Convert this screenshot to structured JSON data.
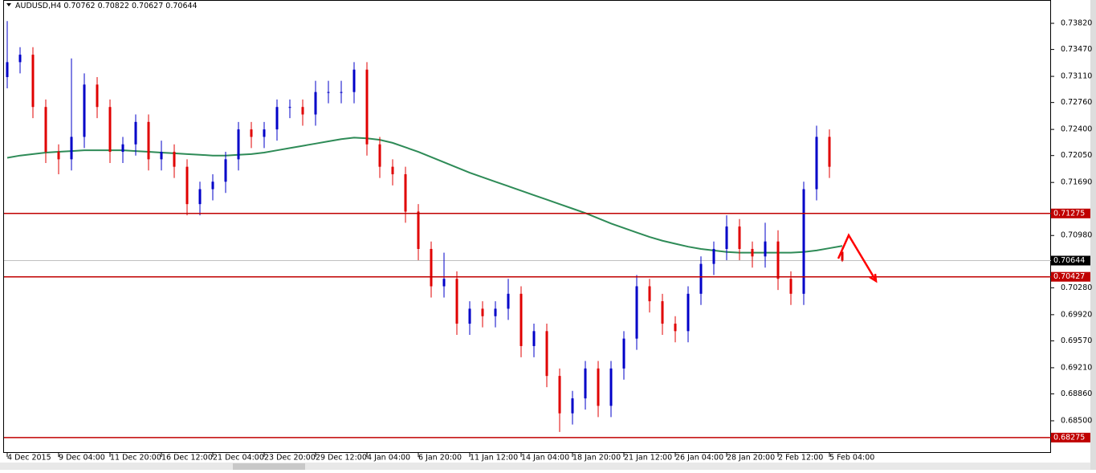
{
  "chart_data": {
    "type": "candlestick",
    "symbol": "AUDUSD,H4",
    "ylim": [
      0.68059,
      0.74132
    ],
    "yticks": [
      {
        "value": 0.7382,
        "label": "0.73820"
      },
      {
        "value": 0.7347,
        "label": "0.73470"
      },
      {
        "value": 0.7311,
        "label": "0.73110"
      },
      {
        "value": 0.7276,
        "label": "0.72760"
      },
      {
        "value": 0.724,
        "label": "0.72400"
      },
      {
        "value": 0.7205,
        "label": "0.72050"
      },
      {
        "value": 0.7169,
        "label": "0.71690"
      },
      {
        "value": 0.7098,
        "label": "0.70980"
      },
      {
        "value": 0.7028,
        "label": "0.70280"
      },
      {
        "value": 0.6992,
        "label": "0.69920"
      },
      {
        "value": 0.6957,
        "label": "0.69570"
      },
      {
        "value": 0.6921,
        "label": "0.69210"
      },
      {
        "value": 0.6886,
        "label": "0.68860"
      },
      {
        "value": 0.685,
        "label": "0.68500"
      }
    ],
    "x_labels": [
      "4 Dec 2015",
      "9 Dec 04:00",
      "11 Dec 20:00",
      "16 Dec 12:00",
      "21 Dec 04:00",
      "23 Dec 20:00",
      "29 Dec 12:00",
      "4 Jan 04:00",
      "6 Jan 20:00",
      "11 Jan 12:00",
      "14 Jan 04:00",
      "18 Jan 20:00",
      "21 Jan 12:00",
      "26 Jan 04:00",
      "28 Jan 20:00",
      "2 Feb 12:00",
      "5 Feb 04:00"
    ],
    "levels": [
      0.71275,
      0.70427,
      0.68275
    ],
    "level_color": "#c00000",
    "bull_color": "#0000c8",
    "bear_color": "#e00000",
    "ma_color": "#2e8b57",
    "close": [
      0.733,
      0.734,
      0.727,
      0.721,
      0.72,
      0.723,
      0.73,
      0.727,
      0.721,
      0.722,
      0.725,
      0.72,
      0.721,
      0.719,
      0.714,
      0.716,
      0.717,
      0.72,
      0.724,
      0.723,
      0.724,
      0.727,
      0.727,
      0.726,
      0.729,
      0.729,
      0.729,
      0.732,
      0.722,
      0.719,
      0.718,
      0.713,
      0.708,
      0.703,
      0.704,
      0.698,
      0.7,
      0.699,
      0.7,
      0.702,
      0.695,
      0.697,
      0.691,
      0.686,
      0.688,
      0.692,
      0.687,
      0.692,
      0.696,
      0.703,
      0.701,
      0.698,
      0.697,
      0.702,
      0.706,
      0.708,
      0.711,
      0.708,
      0.707,
      0.709,
      0.704,
      0.702,
      0.716,
      0.723,
      0.719,
      0.70644
    ],
    "open": [
      0.731,
      0.733,
      0.734,
      0.727,
      0.721,
      0.72,
      0.723,
      0.73,
      0.727,
      0.721,
      0.722,
      0.725,
      0.72,
      0.721,
      0.719,
      0.714,
      0.716,
      0.717,
      0.72,
      0.724,
      0.723,
      0.724,
      0.727,
      0.727,
      0.726,
      0.729,
      0.729,
      0.729,
      0.732,
      0.722,
      0.719,
      0.718,
      0.713,
      0.708,
      0.703,
      0.704,
      0.698,
      0.7,
      0.699,
      0.7,
      0.702,
      0.695,
      0.697,
      0.691,
      0.686,
      0.688,
      0.692,
      0.687,
      0.692,
      0.696,
      0.703,
      0.701,
      0.698,
      0.697,
      0.702,
      0.706,
      0.708,
      0.711,
      0.708,
      0.707,
      0.709,
      0.704,
      0.702,
      0.716,
      0.723,
      0.70762
    ],
    "high": [
      0.7385,
      0.735,
      0.735,
      0.728,
      0.722,
      0.7335,
      0.7315,
      0.731,
      0.728,
      0.723,
      0.726,
      0.726,
      0.7225,
      0.722,
      0.72,
      0.717,
      0.718,
      0.721,
      0.725,
      0.725,
      0.725,
      0.728,
      0.728,
      0.728,
      0.7305,
      0.7305,
      0.7305,
      0.733,
      0.733,
      0.723,
      0.72,
      0.719,
      0.714,
      0.709,
      0.7075,
      0.705,
      0.701,
      0.701,
      0.701,
      0.704,
      0.703,
      0.698,
      0.698,
      0.692,
      0.689,
      0.693,
      0.693,
      0.693,
      0.697,
      0.7045,
      0.704,
      0.702,
      0.699,
      0.703,
      0.707,
      0.709,
      0.7125,
      0.712,
      0.709,
      0.7115,
      0.7105,
      0.705,
      0.717,
      0.7245,
      0.724,
      0.70822
    ],
    "low": [
      0.7295,
      0.7315,
      0.7255,
      0.7195,
      0.718,
      0.7185,
      0.7215,
      0.7255,
      0.7195,
      0.7195,
      0.7205,
      0.7185,
      0.7185,
      0.7175,
      0.7125,
      0.7125,
      0.7145,
      0.7155,
      0.7185,
      0.7215,
      0.7215,
      0.7225,
      0.7255,
      0.7245,
      0.7245,
      0.7275,
      0.7275,
      0.7275,
      0.7205,
      0.7175,
      0.7165,
      0.7115,
      0.7065,
      0.7015,
      0.7015,
      0.6965,
      0.6965,
      0.6975,
      0.6975,
      0.6985,
      0.6935,
      0.6935,
      0.6895,
      0.6835,
      0.6845,
      0.6865,
      0.6855,
      0.6855,
      0.6905,
      0.6945,
      0.6995,
      0.6965,
      0.6955,
      0.6955,
      0.7005,
      0.7045,
      0.7065,
      0.7065,
      0.7055,
      0.7055,
      0.7025,
      0.7005,
      0.7005,
      0.7145,
      0.7175,
      0.70627
    ],
    "ma": [
      0.7202,
      0.7205,
      0.7207,
      0.7209,
      0.721,
      0.7211,
      0.7212,
      0.7212,
      0.7212,
      0.7212,
      0.7211,
      0.721,
      0.7209,
      0.7208,
      0.7207,
      0.7206,
      0.7205,
      0.7205,
      0.7206,
      0.7207,
      0.7209,
      0.7212,
      0.7215,
      0.7218,
      0.7221,
      0.7224,
      0.7227,
      0.7229,
      0.7228,
      0.7226,
      0.7222,
      0.7216,
      0.721,
      0.7203,
      0.7196,
      0.7189,
      0.7182,
      0.7176,
      0.717,
      0.7164,
      0.7158,
      0.7152,
      0.7146,
      0.714,
      0.7134,
      0.7128,
      0.7121,
      0.7114,
      0.7108,
      0.7102,
      0.7096,
      0.7091,
      0.7087,
      0.7083,
      0.708,
      0.7078,
      0.7076,
      0.7075,
      0.7075,
      0.7075,
      0.7075,
      0.7075,
      0.7076,
      0.7078,
      0.7081,
      0.7084
    ]
  }
}
